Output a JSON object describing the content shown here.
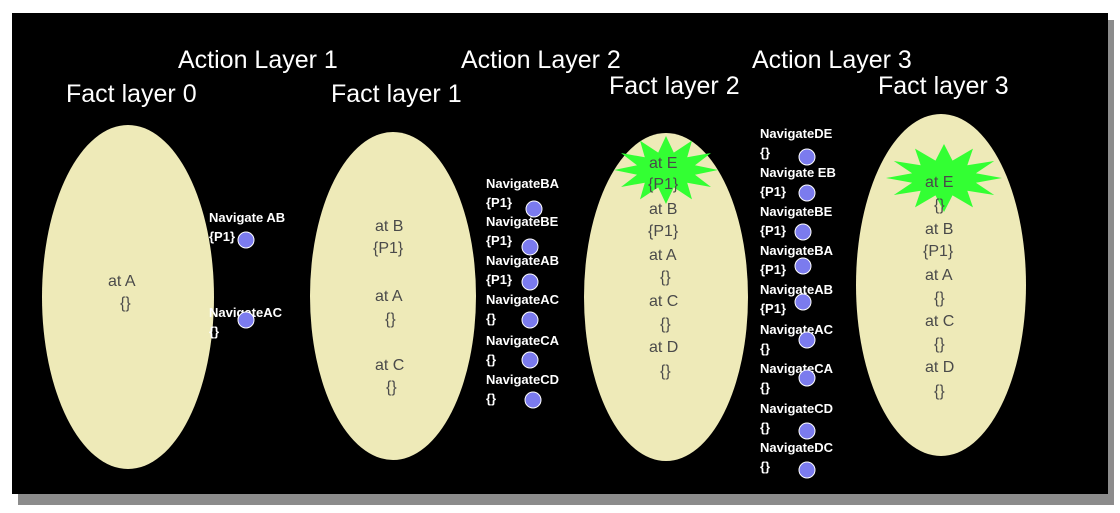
{
  "colors": {
    "background": "#000000",
    "fact_fill": "#eeeab8",
    "node_fill": "#7b7bee",
    "node_stroke": "#ffffff",
    "precondition_edge": "#ff0000",
    "effect_edge": "#ffffff",
    "goal_burst": "#33ff33"
  },
  "layer_titles": [
    {
      "id": "action-layer-1",
      "text": "Action Layer 1"
    },
    {
      "id": "action-layer-2",
      "text": "Action Layer 2"
    },
    {
      "id": "action-layer-3",
      "text": "Action Layer 3"
    },
    {
      "id": "fact-layer-0",
      "text": "Fact layer 0"
    },
    {
      "id": "fact-layer-1",
      "text": "Fact layer 1"
    },
    {
      "id": "fact-layer-2",
      "text": "Fact layer 2"
    },
    {
      "id": "fact-layer-3",
      "text": "Fact layer 3"
    }
  ],
  "facts": {
    "f0A": {
      "name": "at  A",
      "label": "{}"
    },
    "f1B": {
      "name": "at B",
      "label": "{P1}"
    },
    "f1A": {
      "name": "at A",
      "label": "{}"
    },
    "f1C": {
      "name": "at C",
      "label": "{}"
    },
    "f2E": {
      "name": "at E",
      "label": "{P1}"
    },
    "f2B": {
      "name": "at B",
      "label": "{P1}"
    },
    "f2A": {
      "name": "at A",
      "label": "{}"
    },
    "f2C": {
      "name": "at C",
      "label": "{}"
    },
    "f2D": {
      "name": "at D",
      "label": "{}"
    },
    "f3E": {
      "name": "at E",
      "label": "{}"
    },
    "f3B": {
      "name": "at B",
      "label": "{P1}"
    },
    "f3A": {
      "name": "at A",
      "label": "{}"
    },
    "f3C": {
      "name": "at C",
      "label": "{}"
    },
    "f3D": {
      "name": "at D",
      "label": "{}"
    }
  },
  "actions": {
    "a1AB": {
      "name": "Navigate AB",
      "label": "{P1}"
    },
    "a1AC": {
      "name": "NavigateAC",
      "label": "{}"
    },
    "a2BA": {
      "name": "NavigateBA",
      "label": "{P1}"
    },
    "a2BE": {
      "name": "NavigateBE",
      "label": "{P1}"
    },
    "a2AB": {
      "name": "NavigateAB",
      "label": "{P1}"
    },
    "a2AC": {
      "name": "NavigateAC",
      "label": "{}"
    },
    "a2CA": {
      "name": "NavigateCA",
      "label": "{}"
    },
    "a2CD": {
      "name": "NavigateCD",
      "label": "{}"
    },
    "a3DE": {
      "name": "NavigateDE",
      "label": "{}"
    },
    "a3EB": {
      "name": "Navigate EB",
      "label": "{P1}"
    },
    "a3BE": {
      "name": "NavigateBE",
      "label": "{P1}"
    },
    "a3BA": {
      "name": "NavigateBA",
      "label": "{P1}"
    },
    "a3AB": {
      "name": "NavigateAB",
      "label": "{P1}"
    },
    "a3AC": {
      "name": "NavigateAC",
      "label": "{}"
    },
    "a3CA": {
      "name": "NavigateCA",
      "label": "{}"
    },
    "a3CD": {
      "name": "NavigateCD",
      "label": "{}"
    },
    "a3DC": {
      "name": "NavigateDC",
      "label": "{}"
    }
  },
  "precondition_edges": [
    [
      "f0A",
      "a1AB"
    ],
    [
      "f0A",
      "a1AC"
    ],
    [
      "f1B",
      "a2BA"
    ],
    [
      "f1B",
      "a2BE"
    ],
    [
      "f1A",
      "a2AB"
    ],
    [
      "f1A",
      "a2AC"
    ],
    [
      "f1C",
      "a2CA"
    ],
    [
      "f1C",
      "a2CD"
    ],
    [
      "f2E",
      "a3EB"
    ],
    [
      "f2B",
      "a3BE"
    ],
    [
      "f2B",
      "a3BA"
    ],
    [
      "f2A",
      "a3AB"
    ],
    [
      "f2A",
      "a3AC"
    ],
    [
      "f2C",
      "a3CA"
    ],
    [
      "f2C",
      "a3CD"
    ],
    [
      "f2D",
      "a3DE"
    ],
    [
      "f2D",
      "a3DC"
    ]
  ],
  "effect_edges": [
    [
      "a1AB",
      "f1B"
    ],
    [
      "a1AC",
      "f1C"
    ],
    [
      "a2BA",
      "f2A"
    ],
    [
      "a2BE",
      "f2E"
    ],
    [
      "a2AB",
      "f2B"
    ],
    [
      "a2AC",
      "f2C"
    ],
    [
      "a2CA",
      "f2A"
    ],
    [
      "a2CD",
      "f2D"
    ],
    [
      "a3DE",
      "f3E"
    ],
    [
      "a3EB",
      "f3B"
    ],
    [
      "a3BE",
      "f3E"
    ],
    [
      "a3BA",
      "f3A"
    ],
    [
      "a3AB",
      "f3B"
    ],
    [
      "a3AC",
      "f3C"
    ],
    [
      "a3CA",
      "f3A"
    ],
    [
      "a3CD",
      "f3D"
    ],
    [
      "a3DC",
      "f3C"
    ]
  ],
  "goal_bursts": [
    "f2E",
    "f3E"
  ]
}
